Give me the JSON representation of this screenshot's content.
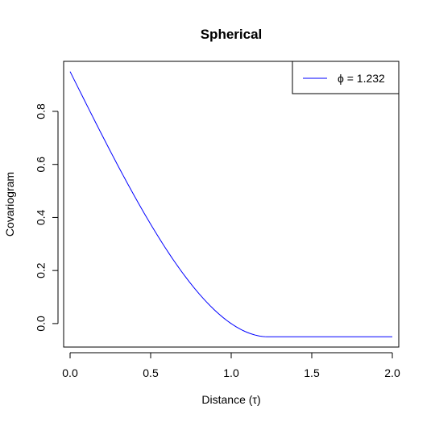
{
  "chart_data": {
    "type": "line",
    "title": "Spherical",
    "xlabel": "Distance (τ)",
    "ylabel": "Covariogram",
    "xlim": [
      -0.04,
      2.04
    ],
    "ylim": [
      -0.0886,
      0.9886
    ],
    "x_ticks": [
      0.0,
      0.5,
      1.0,
      1.5,
      2.0
    ],
    "x_tick_labels": [
      "0.0",
      "0.5",
      "1.0",
      "1.5",
      "2.0"
    ],
    "y_ticks": [
      0.0,
      0.2,
      0.4,
      0.6,
      0.8
    ],
    "y_tick_labels": [
      "0.0",
      "0.2",
      "0.4",
      "0.6",
      "0.8"
    ],
    "grid": false,
    "legend_position": "top-right",
    "series": [
      {
        "name": "ϕ = 1.232",
        "color": "#0000ff",
        "model": "spherical",
        "phi": 1.232,
        "y_at_zero": 0.95,
        "y_floor": -0.05,
        "x_range": [
          0.0,
          2.0
        ]
      }
    ]
  }
}
